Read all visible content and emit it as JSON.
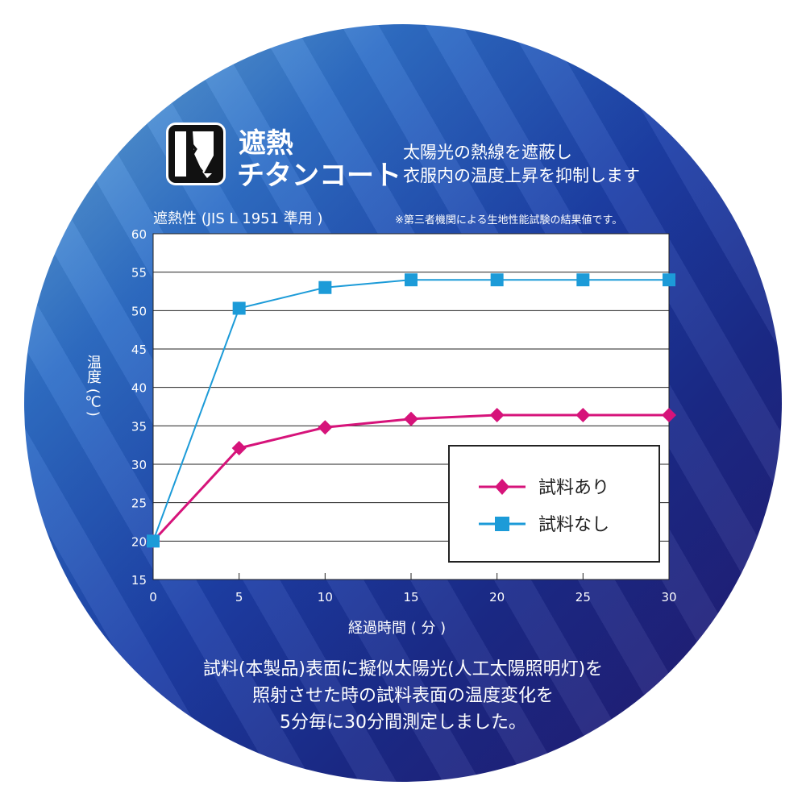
{
  "header": {
    "brand_line1": "遮熱",
    "brand_line2": "チタンコート",
    "tagline1": "太陽光の熱線を遮蔽し",
    "tagline2": "衣服内の温度上昇を抑制します",
    "logo_icon": "heat-shield-icon"
  },
  "chart_title": "遮熱性 (JIS L 1951 準用 )",
  "note": "※第三者機関による生地性能試験の結果値です。",
  "footer": {
    "line1": "試料(本製品)表面に擬似太陽光(人工太陽照明灯)を",
    "line2": "照射させた時の試料表面の温度変化を",
    "line3": "5分毎に30分間測定しました。"
  },
  "chart_data": {
    "type": "line",
    "xlabel": "経過時間 ( 分 )",
    "ylabel": "温度 (℃)",
    "x": [
      0,
      5,
      10,
      15,
      20,
      25,
      30
    ],
    "xlim": [
      0,
      30
    ],
    "ylim": [
      15,
      60
    ],
    "xticks": [
      "0",
      "5",
      "10",
      "15",
      "20",
      "25",
      "30"
    ],
    "yticks": [
      "15",
      "20",
      "25",
      "30",
      "35",
      "40",
      "45",
      "50",
      "55",
      "60"
    ],
    "grid": true,
    "legend": "bottom-right",
    "series": [
      {
        "name": "試料あり",
        "values": [
          20,
          32.1,
          34.8,
          35.9,
          36.4,
          36.4,
          36.4
        ],
        "color": "#d6137a",
        "marker": "diamond"
      },
      {
        "name": "試料なし",
        "values": [
          20,
          50.3,
          53,
          54,
          54,
          54,
          54
        ],
        "color": "#1c9bd8",
        "marker": "square"
      }
    ]
  }
}
